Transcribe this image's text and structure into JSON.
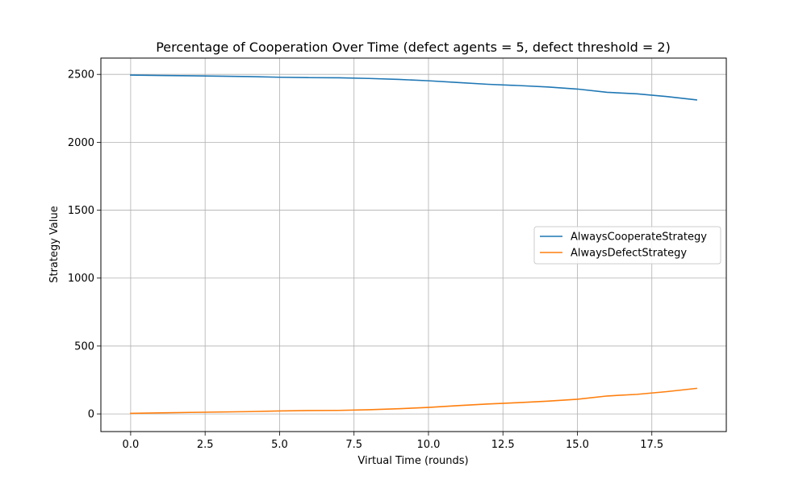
{
  "chart_data": {
    "type": "line",
    "title": "Percentage of Cooperation Over Time (defect agents = 5, defect threshold = 2)",
    "xlabel": "Virtual Time (rounds)",
    "ylabel": "Strategy Value",
    "xlim": [
      -1,
      20
    ],
    "ylim": [
      -130,
      2620
    ],
    "xticks": [
      0.0,
      2.5,
      5.0,
      7.5,
      10.0,
      12.5,
      15.0,
      17.5
    ],
    "xtick_labels": [
      "0.0",
      "2.5",
      "5.0",
      "7.5",
      "10.0",
      "12.5",
      "15.0",
      "17.5"
    ],
    "yticks": [
      0,
      500,
      1000,
      1500,
      2000,
      2500
    ],
    "ytick_labels": [
      "0",
      "500",
      "1000",
      "1500",
      "2000",
      "2500"
    ],
    "grid": true,
    "legend_position": "center-right",
    "x": [
      0,
      1,
      2,
      3,
      4,
      5,
      6,
      7,
      8,
      9,
      10,
      11,
      12,
      13,
      14,
      15,
      16,
      17,
      18,
      19
    ],
    "series": [
      {
        "name": "AlwaysCooperateStrategy",
        "color": "#1f77b4",
        "values": [
          2495,
          2492,
          2490,
          2487,
          2484,
          2479,
          2476,
          2475,
          2470,
          2463,
          2453,
          2440,
          2427,
          2418,
          2407,
          2392,
          2368,
          2357,
          2337,
          2312
        ]
      },
      {
        "name": "AlwaysDefectStrategy",
        "color": "#ff7f0e",
        "values": [
          4,
          8,
          11,
          14,
          17,
          22,
          25,
          26,
          31,
          38,
          48,
          61,
          73,
          83,
          94,
          108,
          132,
          144,
          164,
          188
        ]
      }
    ]
  }
}
